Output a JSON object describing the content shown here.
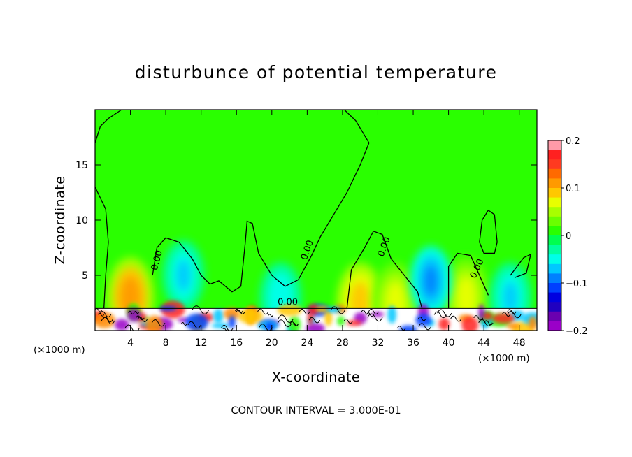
{
  "chart_data": {
    "type": "heatmap",
    "title": "disturbunce of potential temperature",
    "xlabel": "X-coordinate",
    "ylabel": "Z-coordinate",
    "x_unit_label": "(×1000 m)",
    "x_unit_label_right": "(×1000 m)",
    "xlim": [
      0,
      50
    ],
    "ylim": [
      0,
      20
    ],
    "x_ticks": [
      4,
      8,
      12,
      16,
      20,
      24,
      28,
      32,
      36,
      40,
      44,
      48
    ],
    "y_ticks": [
      5,
      10,
      15
    ],
    "colorbar": {
      "ticks": [
        0.2,
        0.1,
        0,
        -0.1,
        -0.2
      ],
      "tick_labels": [
        "0.2",
        "0.1",
        "0",
        "−0.1",
        "−0.2"
      ],
      "range": [
        -0.2,
        0.2
      ],
      "colors": [
        "#ff9aa8",
        "#ff2020",
        "#ff3a20",
        "#ff6a00",
        "#ff9a00",
        "#ffc800",
        "#e8ff00",
        "#a8ff00",
        "#6aff00",
        "#2aff00",
        "#00ff50",
        "#00ffa0",
        "#00ffe8",
        "#00c8ff",
        "#0080ff",
        "#0040ff",
        "#0000e0",
        "#2000c0",
        "#6a00b0",
        "#9a00c8"
      ]
    },
    "background_value": 0.02,
    "contour_label": "0.00",
    "warm_anomalies": [
      {
        "x": 4,
        "z": 3,
        "value": 0.12
      },
      {
        "x": 30,
        "z": 2.5,
        "value": 0.09
      },
      {
        "x": 34,
        "z": 2.5,
        "value": 0.08
      },
      {
        "x": 42,
        "z": 3,
        "value": 0.07
      }
    ],
    "cool_anomalies": [
      {
        "x": 10,
        "z": 5,
        "value": -0.06
      },
      {
        "x": 21,
        "z": 3,
        "value": -0.05
      },
      {
        "x": 38,
        "z": 4.5,
        "value": -0.08
      },
      {
        "x": 47,
        "z": 3,
        "value": -0.06
      }
    ]
  },
  "footer": {
    "contour_interval": "CONTOUR INTERVAL = 3.000E-01"
  },
  "colors": {
    "background_field": "#2aff00"
  }
}
